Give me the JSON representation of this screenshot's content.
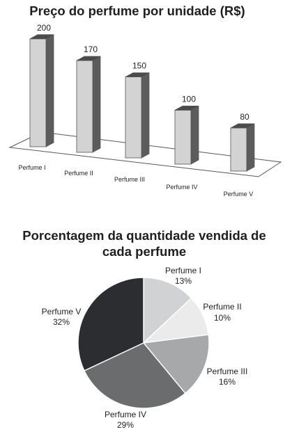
{
  "chart_data": [
    {
      "type": "bar",
      "title": "Preço do perfume por unidade (R$)",
      "categories": [
        "Perfume I",
        "Perfume II",
        "Perfume III",
        "Perfume IV",
        "Perfume V"
      ],
      "values": [
        200,
        170,
        150,
        100,
        80
      ],
      "data_labels": [
        "200",
        "170",
        "150",
        "100",
        "80"
      ],
      "style": "3d-columns-perspective",
      "colors": {
        "front": "#d3d3d3",
        "side": "#5c5c5c",
        "top": "#4a4a4a",
        "outline": "#555555"
      }
    },
    {
      "type": "pie",
      "title_lines": [
        "Porcentagem da quantidade vendida de",
        "cada perfume"
      ],
      "slices": [
        {
          "label": "Perfume I",
          "value": 13,
          "pct": "13%",
          "color": "#d1d2d4"
        },
        {
          "label": "Perfume II",
          "value": 10,
          "pct": "10%",
          "color": "#ebebeb"
        },
        {
          "label": "Perfume III",
          "value": 16,
          "pct": "16%",
          "color": "#a7a8aa"
        },
        {
          "label": "Perfume IV",
          "value": 29,
          "pct": "29%",
          "color": "#6b6c6e"
        },
        {
          "label": "Perfume V",
          "value": 32,
          "pct": "32%",
          "color": "#2b2d31"
        }
      ]
    }
  ]
}
